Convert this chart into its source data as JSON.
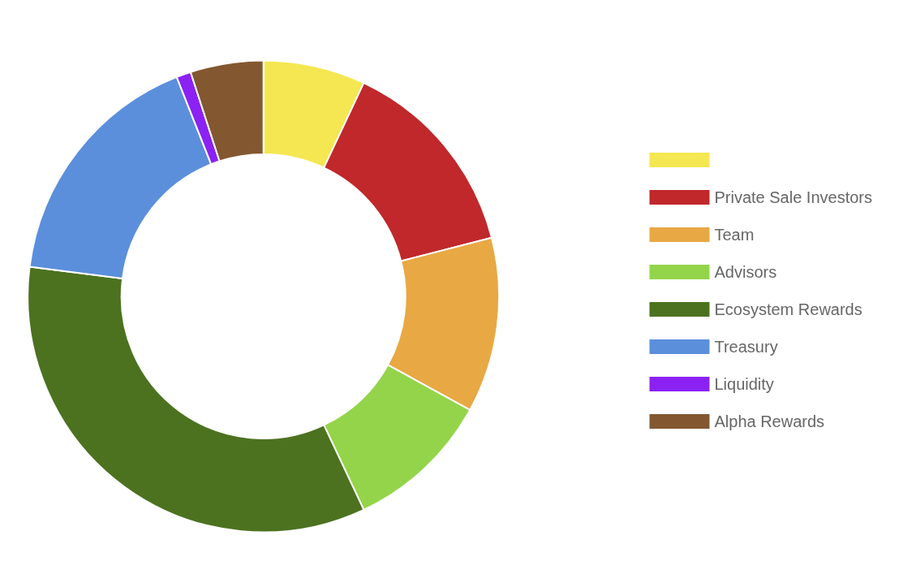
{
  "chart_data": {
    "type": "donut",
    "categories": [
      null,
      "Private Sale Investors",
      "Team",
      "Advisors",
      "Ecosystem Rewards",
      "Treasury",
      "Liquidity",
      "Alpha Rewards"
    ],
    "values": [
      7,
      14,
      12,
      10,
      34,
      17,
      1,
      5
    ],
    "colors": [
      "#f4e751",
      "#c0282b",
      "#e8a843",
      "#94d44a",
      "#4c7220",
      "#5b8fdc",
      "#8b22f3",
      "#835830"
    ],
    "legend": "right"
  }
}
